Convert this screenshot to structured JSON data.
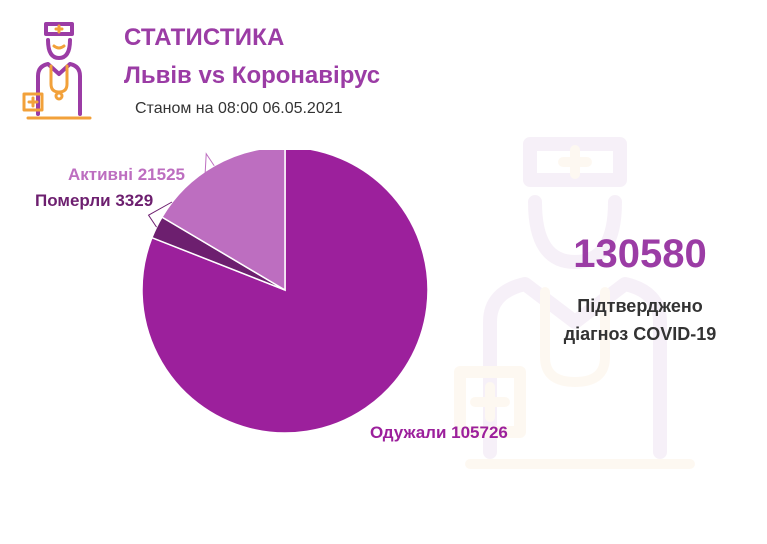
{
  "header": {
    "title": "СТАТИСТИКА",
    "subtitle": "Львів vs Коронавірус",
    "as_of": "Станом на 08:00 06.05.2021"
  },
  "summary": {
    "total": "130580",
    "label_line1": "Підтверджено",
    "label_line2": "діагноз COVID-19"
  },
  "colors": {
    "accent": "#9b3ca5",
    "recovered": "#9c209c",
    "died": "#6d1f6f",
    "active": "#bd6ec0",
    "logo_orange": "#f2a13a"
  },
  "chart_data": {
    "type": "pie",
    "title": "",
    "slices": [
      {
        "name": "Одужали",
        "value": 105726,
        "label": "Одужали 105726",
        "color": "#9c209c",
        "label_color": "#9c209c"
      },
      {
        "name": "Померли",
        "value": 3329,
        "label": "Померли 3329",
        "color": "#6d1f6f",
        "label_color": "#6d1f6f"
      },
      {
        "name": "Активні",
        "value": 21525,
        "label": "Активні 21525",
        "color": "#bd6ec0",
        "label_color": "#bd6ec0"
      }
    ]
  }
}
